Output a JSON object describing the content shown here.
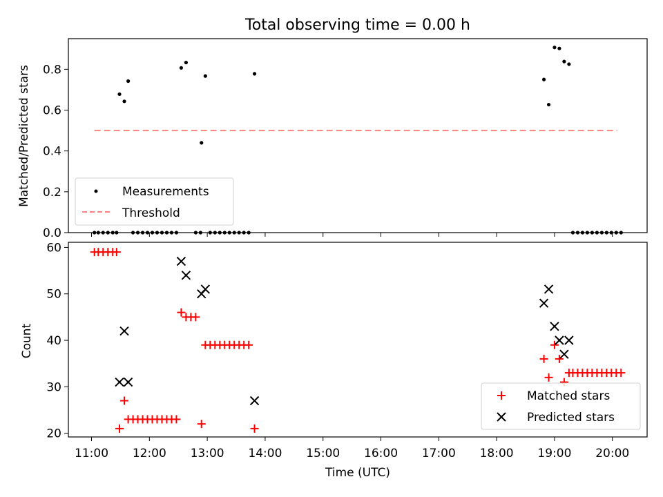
{
  "chart_data": [
    {
      "type": "scatter",
      "title": "Total observing time = 0.00 h",
      "ylabel": "Matched/Predicted stars",
      "xlim": [
        "10:36",
        "20:36"
      ],
      "ylim": [
        0,
        0.95
      ],
      "yticks": [
        0.0,
        0.2,
        0.4,
        0.6,
        0.8
      ],
      "ytick_labels": [
        "0.0",
        "0.2",
        "0.4",
        "0.6",
        "0.8"
      ],
      "legend_position": "lower-left",
      "series": [
        {
          "name": "Measurements",
          "kind": "scatter",
          "color": "#000000",
          "points": [
            [
              "11:03",
              0
            ],
            [
              "11:07",
              0
            ],
            [
              "11:12",
              0
            ],
            [
              "11:17",
              0
            ],
            [
              "11:22",
              0
            ],
            [
              "11:26",
              0
            ],
            [
              "11:29",
              0.678
            ],
            [
              "11:34",
              0.643
            ],
            [
              "11:38",
              0.742
            ],
            [
              "11:43",
              0
            ],
            [
              "11:48",
              0
            ],
            [
              "11:53",
              0
            ],
            [
              "11:58",
              0
            ],
            [
              "12:03",
              0
            ],
            [
              "12:08",
              0
            ],
            [
              "12:13",
              0
            ],
            [
              "12:18",
              0
            ],
            [
              "12:23",
              0
            ],
            [
              "12:28",
              0
            ],
            [
              "12:33",
              0.807
            ],
            [
              "12:38",
              0.833
            ],
            [
              "12:48",
              0
            ],
            [
              "12:53",
              0
            ],
            [
              "12:54",
              0.44
            ],
            [
              "12:58",
              0.767
            ],
            [
              "13:03",
              0
            ],
            [
              "13:08",
              0
            ],
            [
              "13:13",
              0
            ],
            [
              "13:18",
              0
            ],
            [
              "13:23",
              0
            ],
            [
              "13:28",
              0
            ],
            [
              "13:33",
              0
            ],
            [
              "13:38",
              0
            ],
            [
              "13:43",
              0
            ],
            [
              "13:49",
              0.778
            ],
            [
              "18:49",
              0.75
            ],
            [
              "18:54",
              0.627
            ],
            [
              "19:00",
              0.907
            ],
            [
              "19:05",
              0.902
            ],
            [
              "19:10",
              0.838
            ],
            [
              "19:15",
              0.825
            ],
            [
              "19:19",
              0
            ],
            [
              "19:24",
              0
            ],
            [
              "19:29",
              0
            ],
            [
              "19:34",
              0
            ],
            [
              "19:39",
              0
            ],
            [
              "19:44",
              0
            ],
            [
              "19:49",
              0
            ],
            [
              "19:54",
              0
            ],
            [
              "19:59",
              0
            ],
            [
              "20:04",
              0
            ],
            [
              "20:09",
              0
            ]
          ]
        },
        {
          "name": "Threshold",
          "kind": "dashed-line",
          "color": "#ff8080",
          "points": [
            [
              "11:03",
              0.5
            ],
            [
              "20:05",
              0.5
            ]
          ]
        }
      ]
    },
    {
      "type": "scatter",
      "xlabel": "Time (UTC)",
      "ylabel": "Count",
      "xlim": [
        "10:36",
        "20:36"
      ],
      "ylim": [
        19.2,
        61.1
      ],
      "xticks": [
        "11:00",
        "12:00",
        "13:00",
        "14:00",
        "15:00",
        "16:00",
        "17:00",
        "18:00",
        "19:00",
        "20:00"
      ],
      "yticks": [
        20,
        30,
        40,
        50,
        60
      ],
      "ytick_labels": [
        "20",
        "30",
        "40",
        "50",
        "60"
      ],
      "legend_position": "lower-right",
      "series": [
        {
          "name": "Matched stars",
          "marker": "+",
          "color": "#ff0000",
          "points": [
            [
              "11:03",
              59
            ],
            [
              "11:07",
              59
            ],
            [
              "11:12",
              59
            ],
            [
              "11:17",
              59
            ],
            [
              "11:22",
              59
            ],
            [
              "11:26",
              59
            ],
            [
              "11:29",
              21
            ],
            [
              "11:34",
              27
            ],
            [
              "11:38",
              23
            ],
            [
              "11:43",
              23
            ],
            [
              "11:48",
              23
            ],
            [
              "11:53",
              23
            ],
            [
              "11:58",
              23
            ],
            [
              "12:03",
              23
            ],
            [
              "12:08",
              23
            ],
            [
              "12:13",
              23
            ],
            [
              "12:18",
              23
            ],
            [
              "12:23",
              23
            ],
            [
              "12:28",
              23
            ],
            [
              "12:33",
              46
            ],
            [
              "12:38",
              45
            ],
            [
              "12:43",
              45
            ],
            [
              "12:48",
              45
            ],
            [
              "12:54",
              22
            ],
            [
              "12:58",
              39
            ],
            [
              "13:03",
              39
            ],
            [
              "13:08",
              39
            ],
            [
              "13:13",
              39
            ],
            [
              "13:18",
              39
            ],
            [
              "13:23",
              39
            ],
            [
              "13:28",
              39
            ],
            [
              "13:33",
              39
            ],
            [
              "13:38",
              39
            ],
            [
              "13:43",
              39
            ],
            [
              "13:49",
              21
            ],
            [
              "18:49",
              36
            ],
            [
              "18:54",
              32
            ],
            [
              "19:00",
              39
            ],
            [
              "19:05",
              36
            ],
            [
              "19:10",
              31
            ],
            [
              "19:15",
              33
            ],
            [
              "19:19",
              33
            ],
            [
              "19:24",
              33
            ],
            [
              "19:29",
              33
            ],
            [
              "19:34",
              33
            ],
            [
              "19:39",
              33
            ],
            [
              "19:44",
              33
            ],
            [
              "19:49",
              33
            ],
            [
              "19:54",
              33
            ],
            [
              "19:59",
              33
            ],
            [
              "20:04",
              33
            ],
            [
              "20:09",
              33
            ]
          ]
        },
        {
          "name": "Predicted stars",
          "marker": "x",
          "color": "#000000",
          "points": [
            [
              "11:29",
              31
            ],
            [
              "11:34",
              42
            ],
            [
              "11:38",
              31
            ],
            [
              "12:33",
              57
            ],
            [
              "12:38",
              54
            ],
            [
              "12:54",
              50
            ],
            [
              "12:58",
              51
            ],
            [
              "13:49",
              27
            ],
            [
              "18:49",
              48
            ],
            [
              "18:54",
              51
            ],
            [
              "19:00",
              43
            ],
            [
              "19:05",
              40
            ],
            [
              "19:10",
              37
            ],
            [
              "19:15",
              40
            ]
          ]
        }
      ]
    }
  ]
}
